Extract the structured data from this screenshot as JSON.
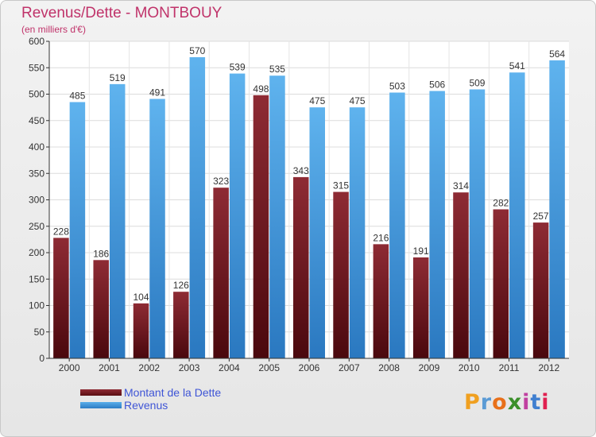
{
  "title": "Revenus/Dette - MONTBOUY",
  "subtitle": "(en milliers d'€)",
  "brand": "Proxiti",
  "brand_colors": [
    "#f0a020",
    "#5b9bd5",
    "#e8701a",
    "#3a8f2a",
    "#c040a0",
    "#3f7fd0",
    "#e02050"
  ],
  "colors": {
    "debt": "#7a1a22",
    "revenue": "#4a9ee0",
    "title": "#c0336a",
    "legend_text": "#3f55d6"
  },
  "legend": {
    "debt_label": "Montant de la Dette",
    "revenue_label": "Revenus"
  },
  "chart_data": {
    "type": "bar",
    "title": "Revenus/Dette - MONTBOUY",
    "subtitle": "(en milliers d'€)",
    "categories": [
      "2000",
      "2001",
      "2002",
      "2003",
      "2004",
      "2005",
      "2006",
      "2007",
      "2008",
      "2009",
      "2010",
      "2011",
      "2012"
    ],
    "series": [
      {
        "name": "Montant de la Dette",
        "values": [
          228,
          186,
          104,
          126,
          323,
          498,
          343,
          315,
          216,
          191,
          314,
          282,
          257
        ]
      },
      {
        "name": "Revenus",
        "values": [
          485,
          519,
          491,
          570,
          539,
          535,
          475,
          475,
          503,
          506,
          509,
          541,
          564
        ]
      }
    ],
    "ylim": [
      0,
      600
    ],
    "yticks": [
      0,
      50,
      100,
      150,
      200,
      250,
      300,
      350,
      400,
      450,
      500,
      550,
      600
    ],
    "grid": true,
    "legend_position": "bottom-left"
  }
}
